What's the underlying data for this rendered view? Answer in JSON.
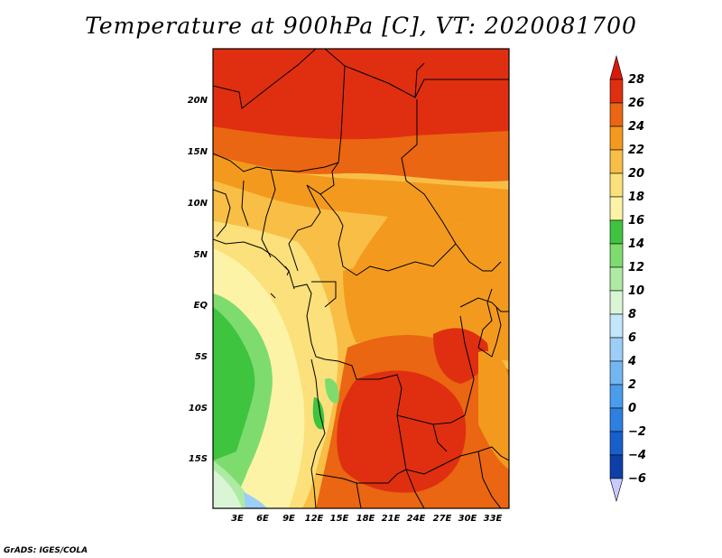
{
  "title": "Temperature at 900hPa [C], VT: 2020081700",
  "footer": "GrADS: IGES/COLA",
  "map": {
    "lat_labels": [
      "20N",
      "15N",
      "10N",
      "5N",
      "EQ",
      "5S",
      "10S",
      "15S"
    ],
    "lon_labels": [
      "3E",
      "6E",
      "9E",
      "12E",
      "15E",
      "18E",
      "21E",
      "24E",
      "27E",
      "30E",
      "33E"
    ],
    "extent": {
      "lon": [
        0,
        35
      ],
      "lat": [
        -19,
        24.5
      ]
    }
  },
  "colorbar": {
    "levels": [
      -6,
      -4,
      -2,
      0,
      2,
      4,
      6,
      8,
      10,
      12,
      14,
      16,
      18,
      20,
      22,
      24,
      26,
      28
    ],
    "colors": [
      "#0a0a7a",
      "#0d3fa8",
      "#1760cc",
      "#2d7fe0",
      "#4a9cec",
      "#74b6f2",
      "#9ccef7",
      "#c2e6fb",
      "#d9f5d6",
      "#aeeaa3",
      "#7edc6e",
      "#3fc43f",
      "#fcf3a6",
      "#fbe07c",
      "#f9be46",
      "#f39a1e",
      "#ea6612",
      "#df2f10",
      "#d81a0c",
      "#c9c9ff"
    ]
  }
}
